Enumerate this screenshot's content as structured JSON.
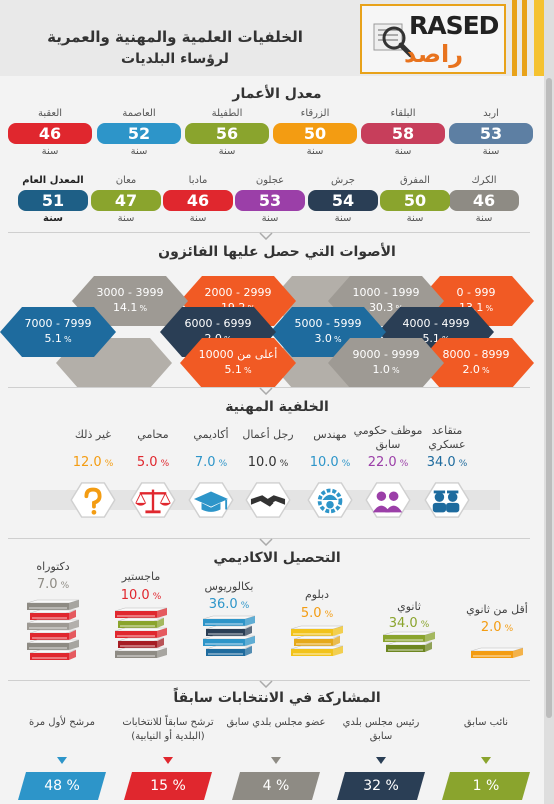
{
  "header": {
    "title_line1": "الخلفيات العلمية والمهنية والعمرية",
    "title_line2": "لرؤساء البلديات",
    "logo_en": "RASED",
    "logo_ar": "راصد"
  },
  "ages": {
    "title": "معدل الأعمار",
    "unit": "سنة",
    "row1": [
      {
        "name": "اربد",
        "value": "53",
        "color": "#5d7fa3"
      },
      {
        "name": "البلقاء",
        "value": "58",
        "color": "#c73e5b"
      },
      {
        "name": "الزرقاء",
        "value": "50",
        "color": "#f39c12"
      },
      {
        "name": "الطفيلة",
        "value": "56",
        "color": "#8aa42d"
      },
      {
        "name": "العاصمة",
        "value": "52",
        "color": "#2d95c9"
      },
      {
        "name": "العقبة",
        "value": "46",
        "color": "#e0272e"
      }
    ],
    "row2": [
      {
        "name": "الكرك",
        "value": "46",
        "color": "#8e8b84"
      },
      {
        "name": "المفرق",
        "value": "50",
        "color": "#8aa42d"
      },
      {
        "name": "جرش",
        "value": "54",
        "color": "#2a3e55"
      },
      {
        "name": "عجلون",
        "value": "53",
        "color": "#9b3fa8"
      },
      {
        "name": "مادبا",
        "value": "46",
        "color": "#e0272e"
      },
      {
        "name": "معان",
        "value": "47",
        "color": "#8aa42d"
      },
      {
        "name": "المعدل العام",
        "value": "51",
        "color": "#1e5f86"
      }
    ]
  },
  "votes": {
    "title": "الأصوات التي حصل عليها الفائزون",
    "items": [
      {
        "range": "999 - 0",
        "pct": "13.1",
        "color": "#f15a24"
      },
      {
        "range": "1999 - 1000",
        "pct": "30.3",
        "color": "#9e9a94"
      },
      {
        "range": "2999 - 2000",
        "pct": "19.2",
        "color": "#f15a24"
      },
      {
        "range": "3999 - 3000",
        "pct": "14.1",
        "color": "#9e9a94"
      },
      {
        "range": "4999 - 4000",
        "pct": "5.1",
        "color": "#2a3e55"
      },
      {
        "range": "5999 - 5000",
        "pct": "3.0",
        "color": "#1e6b9e"
      },
      {
        "range": "6999 - 6000",
        "pct": "2.0",
        "color": "#2a3e55"
      },
      {
        "range": "7999 - 7000",
        "pct": "5.1",
        "color": "#1e6b9e"
      },
      {
        "range": "8999 - 8000",
        "pct": "2.0",
        "color": "#f15a24"
      },
      {
        "range": "9999 - 9000",
        "pct": "1.0",
        "color": "#9e9a94"
      },
      {
        "range": "أعلى من 10000",
        "pct": "5.1",
        "color": "#f15a24"
      }
    ],
    "pct_sign": "%"
  },
  "profession": {
    "title": "الخلفية المهنية",
    "pct_sign": "%",
    "items": [
      {
        "label": "متقاعد عسكري",
        "value": "34.0",
        "color": "#1e6b9e",
        "icon": "soldiers-icon"
      },
      {
        "label": "موظف حكومي سابق",
        "value": "22.0",
        "color": "#9b3fa8",
        "icon": "employees-icon"
      },
      {
        "label": "مهندس",
        "value": "10.0",
        "color": "#2d95c9",
        "icon": "engineer-icon"
      },
      {
        "label": "رجل أعمال",
        "value": "10.0",
        "color": "#333333",
        "icon": "handshake-icon"
      },
      {
        "label": "أكاديمي",
        "value": "7.0",
        "color": "#2d95c9",
        "icon": "graduation-cap-icon"
      },
      {
        "label": "محامي",
        "value": "5.0",
        "color": "#e0272e",
        "icon": "scales-icon"
      },
      {
        "label": "غير ذلك",
        "value": "12.0",
        "color": "#f39c12",
        "icon": "question-mark-icon"
      }
    ]
  },
  "education": {
    "title": "التحصيل الاكاديمي",
    "pct_sign": "%",
    "items": [
      {
        "label": "أقل من ثانوي",
        "value": "2.0",
        "color": "#f39c12"
      },
      {
        "label": "ثانوي",
        "value": "34.0",
        "color": "#8aa42d"
      },
      {
        "label": "دبلوم",
        "value": "5.0",
        "color": "#f39c12"
      },
      {
        "label": "بكالوريوس",
        "value": "36.0",
        "color": "#2d95c9"
      },
      {
        "label": "ماجستير",
        "value": "10.0",
        "color": "#e0272e"
      },
      {
        "label": "دكتوراه",
        "value": "7.0",
        "color": "#8e8b84"
      }
    ]
  },
  "elections": {
    "title": "المشاركة في الانتخابات سابقاً",
    "items": [
      {
        "label": "نائب سابق",
        "value": "1 %",
        "color": "#8aa42d"
      },
      {
        "label": "رئيس مجلس بلدي سابق",
        "value": "32 %",
        "color": "#2a3e55"
      },
      {
        "label": "عضو مجلس بلدي سابق",
        "value": "4 %",
        "color": "#8e8b84"
      },
      {
        "label": "ترشح سابقاً للانتخابات (البلدية أو النيابية)",
        "value": "15 %",
        "color": "#e0272e"
      },
      {
        "label": "مرشح لأول مرة",
        "value": "48 %",
        "color": "#2d95c9"
      }
    ]
  }
}
